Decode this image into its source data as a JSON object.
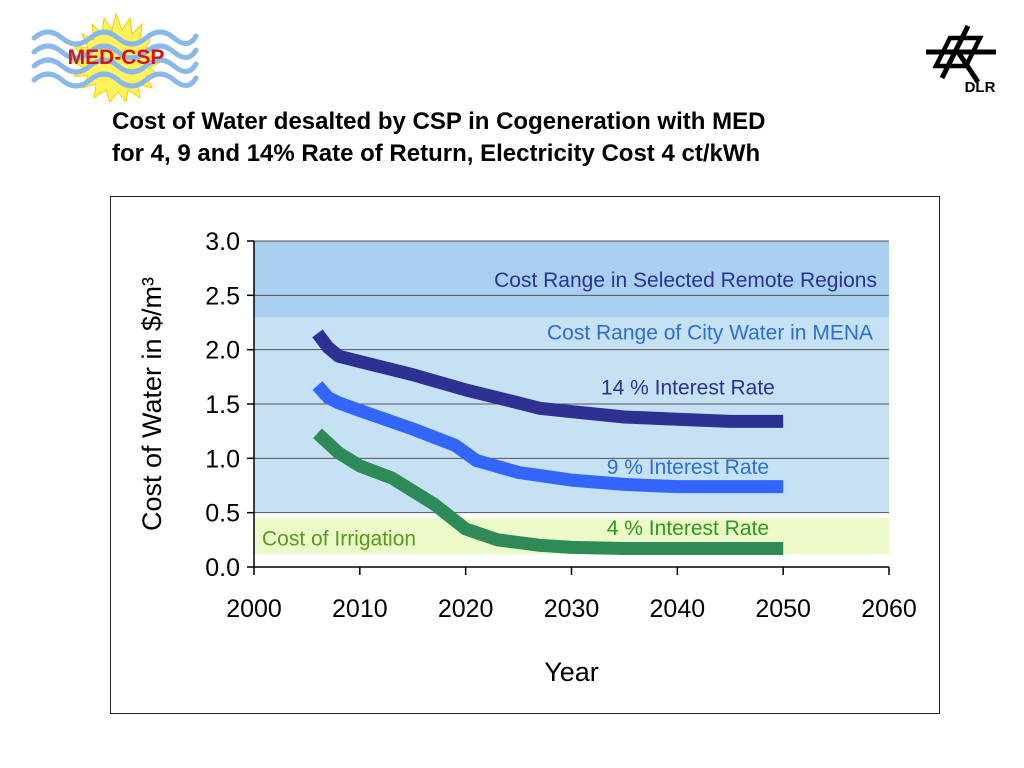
{
  "logos": {
    "left_text": "MED-CSP",
    "right_text": "DLR"
  },
  "slide": {
    "title_line1": "Cost of Water desalted by CSP in Cogeneration with MED",
    "title_line2": "for 4, 9 and 14% Rate of Return, Electricity Cost 4 ct/kWh"
  },
  "chart_data": {
    "type": "line",
    "xlabel": "Year",
    "ylabel": "Cost of Water in $/m³",
    "xlim": [
      2000,
      2060
    ],
    "ylim": [
      0,
      3
    ],
    "x_ticks": [
      "2000",
      "2010",
      "2020",
      "2030",
      "2040",
      "2050",
      "2060"
    ],
    "y_ticks": [
      "0.0",
      "0.5",
      "1.0",
      "1.5",
      "2.0",
      "2.5",
      "3.0"
    ],
    "grid": true,
    "colors": {
      "remote_band": "#a9d0f0",
      "city_band": "#c6e1f3",
      "irrigation_band": "#ecf9c8",
      "series_14": "#2e3192",
      "series_9": "#3366ff",
      "series_4": "#2e8b57"
    },
    "bands": [
      {
        "name": "Cost Range in Selected Remote Regions",
        "y0": 2.3,
        "y1": 3.0
      },
      {
        "name": "Cost Range of City Water in MENA",
        "y0": 0.5,
        "y1": 2.3
      },
      {
        "name": "Cost of Irrigation",
        "y0": 0.12,
        "y1": 0.45
      }
    ],
    "series": [
      {
        "name": "14 % Interest Rate",
        "x": [
          2006,
          2007,
          2008,
          2010,
          2015,
          2020,
          2025,
          2027,
          2030,
          2035,
          2040,
          2045,
          2050
        ],
        "values": [
          2.15,
          2.02,
          1.94,
          1.89,
          1.77,
          1.63,
          1.51,
          1.46,
          1.43,
          1.38,
          1.36,
          1.34,
          1.34
        ]
      },
      {
        "name": "9 % Interest Rate",
        "x": [
          2006,
          2007,
          2008,
          2010,
          2015,
          2019,
          2021,
          2025,
          2030,
          2035,
          2040,
          2045,
          2050
        ],
        "values": [
          1.67,
          1.56,
          1.51,
          1.44,
          1.27,
          1.12,
          0.98,
          0.87,
          0.8,
          0.76,
          0.74,
          0.74,
          0.74
        ]
      },
      {
        "name": "4 % Interest Rate",
        "x": [
          2006,
          2008,
          2010,
          2013,
          2017,
          2020,
          2023,
          2027,
          2030,
          2035,
          2040,
          2045,
          2050
        ],
        "values": [
          1.23,
          1.05,
          0.93,
          0.82,
          0.58,
          0.35,
          0.25,
          0.2,
          0.18,
          0.17,
          0.17,
          0.17,
          0.17
        ]
      }
    ]
  }
}
